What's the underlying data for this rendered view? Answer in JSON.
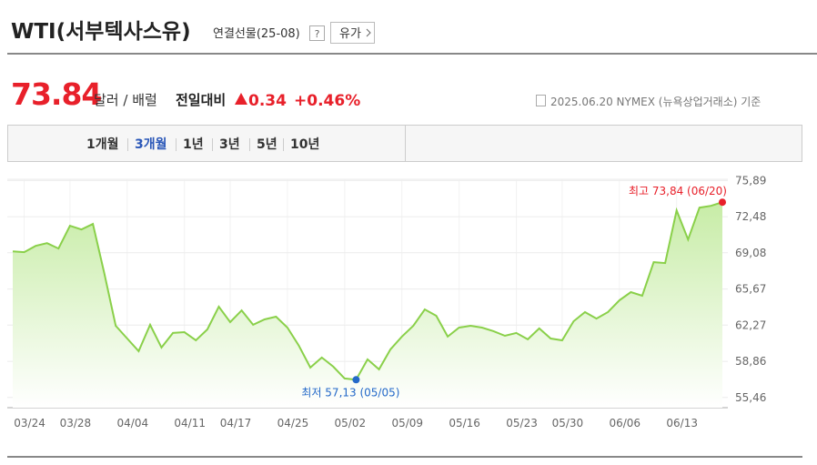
{
  "header": {
    "title": "WTI(서부텍사스유)",
    "subtitle": "연결선물(25-08)",
    "help": "?",
    "category_button": "유가"
  },
  "price": {
    "value": 73.84,
    "unit": "달러 / 배럴",
    "change_label": "전일대비",
    "change": 0.34,
    "change_percent": "+0.46%",
    "as_of": "2025.06.20 NYMEX (뉴욕상업거래소) 기준"
  },
  "tabs": [
    "1개월",
    "3개월",
    "1년",
    "3년",
    "5년",
    "10년"
  ],
  "chart_data": {
    "type": "area",
    "categories": [
      null,
      "03/24",
      null,
      null,
      null,
      "03/28",
      null,
      null,
      null,
      null,
      "04/04",
      null,
      null,
      null,
      null,
      "04/11",
      null,
      null,
      null,
      "04/17",
      null,
      null,
      null,
      null,
      "04/25",
      null,
      null,
      null,
      null,
      "05/02",
      null,
      null,
      null,
      null,
      "05/09",
      null,
      null,
      null,
      null,
      "05/16",
      null,
      null,
      null,
      null,
      "05/23",
      null,
      null,
      null,
      "05/30",
      null,
      null,
      null,
      null,
      "06/06",
      null,
      null,
      null,
      null,
      "06/13",
      null,
      null,
      null,
      null
    ],
    "values": [
      69.22,
      69.14,
      69.73,
      69.99,
      69.48,
      71.62,
      71.27,
      71.79,
      67.17,
      62.21,
      61.01,
      59.82,
      62.3,
      60.16,
      61.53,
      61.61,
      60.84,
      61.87,
      64.01,
      62.55,
      63.66,
      62.3,
      62.81,
      63.07,
      62.04,
      60.33,
      58.28,
      59.22,
      58.36,
      57.25,
      57.13,
      59.05,
      58.11,
      59.99,
      61.19,
      62.21,
      63.75,
      63.15,
      61.19,
      62.04,
      62.21,
      62.04,
      61.7,
      61.27,
      61.53,
      60.93,
      61.96,
      61.01,
      60.84,
      62.64,
      63.49,
      62.89,
      63.49,
      64.61,
      65.38,
      65.04,
      68.2,
      68.11,
      73.07,
      70.33,
      73.33,
      73.5,
      73.84
    ],
    "color": "#8ad04a",
    "max_color": "#e8202a",
    "min_color": "#2469c9",
    "max_label": "최고 73,84 (06/20)",
    "min_label": "최저 57,13 (05/05)",
    "ylim": [
      54.5,
      76.0
    ],
    "yticks": [
      {
        "value": 55.46,
        "label": "55,46"
      },
      {
        "value": 58.86,
        "label": "58,86"
      },
      {
        "value": 62.27,
        "label": "62,27"
      },
      {
        "value": 65.67,
        "label": "65,67"
      },
      {
        "value": 69.08,
        "label": "69,08"
      },
      {
        "value": 72.48,
        "label": "72,48"
      },
      {
        "value": 75.89,
        "label": "75,89"
      }
    ],
    "grid": true
  }
}
